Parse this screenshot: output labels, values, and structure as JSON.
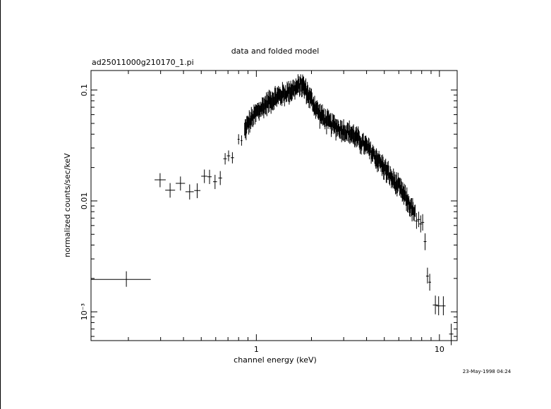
{
  "title": "data and folded model",
  "filename": "ad25011000g210170_1.pi",
  "timestamp": "23-May-1998 04:24",
  "chart_data": {
    "type": "scatter",
    "title": "data and folded model",
    "subtitle": "ad25011000g210170_1.pi",
    "xlabel": "channel energy (keV)",
    "ylabel": "normalized counts/sec/keV",
    "xscale": "log",
    "yscale": "log",
    "xlim": [
      0.125,
      12.5
    ],
    "ylim": [
      0.00055,
      0.15
    ],
    "x_ticks": [
      {
        "value": 1,
        "label": "1"
      },
      {
        "value": 10,
        "label": "10"
      }
    ],
    "y_ticks": [
      {
        "value": 0.1,
        "label": "0.1"
      },
      {
        "value": 0.01,
        "label": "0.01"
      },
      {
        "value": 0.001,
        "label": "10⁻³"
      }
    ],
    "grid": false,
    "color": "#000000",
    "series": [
      {
        "points": [
          {
            "x": 0.195,
            "y": 0.00196,
            "xlo": 0.125,
            "xhi": 0.265,
            "ylo": 0.00168,
            "yhi": 0.00232
          },
          {
            "x": 0.298,
            "y": 0.0155,
            "xlo": 0.278,
            "xhi": 0.32,
            "ylo": 0.0133,
            "yhi": 0.0178
          },
          {
            "x": 0.338,
            "y": 0.0125,
            "xlo": 0.318,
            "xhi": 0.36,
            "ylo": 0.0107,
            "yhi": 0.0145
          },
          {
            "x": 0.385,
            "y": 0.0144,
            "xlo": 0.363,
            "xhi": 0.408,
            "ylo": 0.0124,
            "yhi": 0.0166
          },
          {
            "x": 0.432,
            "y": 0.0121,
            "xlo": 0.41,
            "xhi": 0.455,
            "ylo": 0.0103,
            "yhi": 0.0141
          },
          {
            "x": 0.475,
            "y": 0.0124,
            "xlo": 0.458,
            "xhi": 0.495,
            "ylo": 0.0106,
            "yhi": 0.0144
          },
          {
            "x": 0.52,
            "y": 0.0167,
            "xlo": 0.5,
            "xhi": 0.54,
            "ylo": 0.0145,
            "yhi": 0.0192
          },
          {
            "x": 0.555,
            "y": 0.0165,
            "xlo": 0.54,
            "xhi": 0.57,
            "ylo": 0.0142,
            "yhi": 0.0191
          },
          {
            "x": 0.595,
            "y": 0.0149,
            "xlo": 0.58,
            "xhi": 0.61,
            "ylo": 0.0128,
            "yhi": 0.0172
          },
          {
            "x": 0.635,
            "y": 0.0161,
            "xlo": 0.62,
            "xhi": 0.65,
            "ylo": 0.0139,
            "yhi": 0.0186
          },
          {
            "x": 0.675,
            "y": 0.024,
            "xlo": 0.66,
            "xhi": 0.69,
            "ylo": 0.0213,
            "yhi": 0.027
          },
          {
            "x": 0.705,
            "y": 0.0255,
            "xlo": 0.69,
            "xhi": 0.72,
            "ylo": 0.0228,
            "yhi": 0.0285
          },
          {
            "x": 0.74,
            "y": 0.0245,
            "xlo": 0.725,
            "xhi": 0.755,
            "ylo": 0.0218,
            "yhi": 0.0275
          },
          {
            "x": 0.8,
            "y": 0.036,
            "xlo": 0.79,
            "xhi": 0.81,
            "ylo": 0.0324,
            "yhi": 0.04
          },
          {
            "x": 0.83,
            "y": 0.035,
            "xlo": 0.82,
            "xhi": 0.84,
            "ylo": 0.0315,
            "yhi": 0.039
          },
          {
            "x": 7.5,
            "y": 0.0066,
            "xlo": 7.35,
            "xhi": 7.65,
            "ylo": 0.0056,
            "yhi": 0.0078
          },
          {
            "x": 7.7,
            "y": 0.0068,
            "xlo": 7.55,
            "xhi": 7.85,
            "ylo": 0.0058,
            "yhi": 0.008
          },
          {
            "x": 7.9,
            "y": 0.0062,
            "xlo": 7.75,
            "xhi": 8.05,
            "ylo": 0.0052,
            "yhi": 0.0074
          },
          {
            "x": 8.1,
            "y": 0.0064,
            "xlo": 7.95,
            "xhi": 8.25,
            "ylo": 0.0054,
            "yhi": 0.0076
          },
          {
            "x": 8.35,
            "y": 0.0043,
            "xlo": 8.2,
            "xhi": 8.5,
            "ylo": 0.0036,
            "yhi": 0.0051
          },
          {
            "x": 8.6,
            "y": 0.0021,
            "xlo": 8.45,
            "xhi": 8.75,
            "ylo": 0.0018,
            "yhi": 0.0025
          },
          {
            "x": 8.85,
            "y": 0.00185,
            "xlo": 8.7,
            "xhi": 9.0,
            "ylo": 0.00155,
            "yhi": 0.0022
          },
          {
            "x": 9.5,
            "y": 0.00115,
            "xlo": 9.2,
            "xhi": 9.8,
            "ylo": 0.00095,
            "yhi": 0.0014
          },
          {
            "x": 9.9,
            "y": 0.00113,
            "xlo": 9.6,
            "xhi": 10.2,
            "ylo": 0.00093,
            "yhi": 0.00138
          },
          {
            "x": 10.5,
            "y": 0.00113,
            "xlo": 10.2,
            "xhi": 10.8,
            "ylo": 0.00093,
            "yhi": 0.00138
          },
          {
            "x": 11.6,
            "y": 0.00063,
            "xlo": 11.3,
            "xhi": 11.9,
            "ylo": 0.0005,
            "yhi": 0.00078
          }
        ],
        "dense_points": {
          "x_range": [
            0.86,
            7.4
          ],
          "count": 330,
          "curve": [
            [
              0.86,
              0.043
            ],
            [
              0.9,
              0.05
            ],
            [
              1.0,
              0.063
            ],
            [
              1.1,
              0.073
            ],
            [
              1.2,
              0.082
            ],
            [
              1.3,
              0.088
            ],
            [
              1.4,
              0.093
            ],
            [
              1.5,
              0.098
            ],
            [
              1.6,
              0.103
            ],
            [
              1.7,
              0.108
            ],
            [
              1.75,
              0.115
            ],
            [
              1.8,
              0.11
            ],
            [
              1.9,
              0.095
            ],
            [
              2.0,
              0.082
            ],
            [
              2.2,
              0.062
            ],
            [
              2.5,
              0.051
            ],
            [
              2.8,
              0.046
            ],
            [
              3.0,
              0.044
            ],
            [
              3.3,
              0.041
            ],
            [
              3.7,
              0.035
            ],
            [
              4.0,
              0.031
            ],
            [
              4.5,
              0.025
            ],
            [
              5.0,
              0.02
            ],
            [
              5.5,
              0.016
            ],
            [
              6.0,
              0.0135
            ],
            [
              6.5,
              0.011
            ],
            [
              7.0,
              0.0088
            ],
            [
              7.4,
              0.0075
            ]
          ],
          "scatter_frac": 0.1,
          "err_frac": 0.15
        }
      }
    ]
  }
}
